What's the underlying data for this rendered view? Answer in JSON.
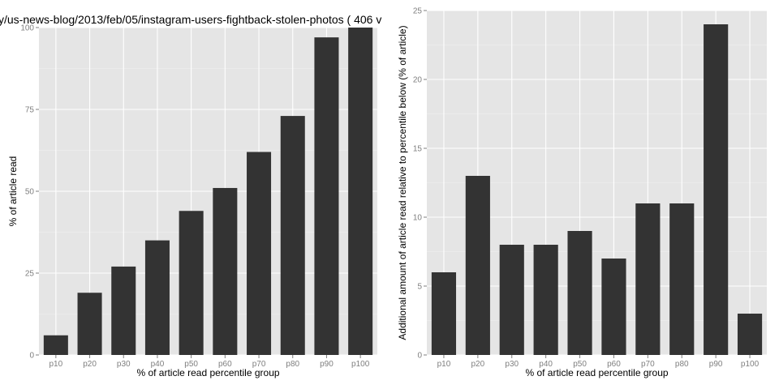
{
  "figure_title": "y/us-news-blog/2013/feb/05/instagram-users-fightback-stolen-photos ( 406 v",
  "chart_data": [
    {
      "type": "bar",
      "categories": [
        "p10",
        "p20",
        "p30",
        "p40",
        "p50",
        "p60",
        "p70",
        "p80",
        "p90",
        "p100"
      ],
      "values": [
        6,
        19,
        27,
        35,
        44,
        51,
        62,
        73,
        97,
        100
      ],
      "xlabel": "% of article read percentile group",
      "ylabel": "% of article read",
      "ylim": [
        0,
        100
      ],
      "yticks": [
        0,
        25,
        50,
        75,
        100
      ],
      "grid": true,
      "bar_color": "#333333",
      "panel_color": "#e5e5e5"
    },
    {
      "type": "bar",
      "categories": [
        "p10",
        "p20",
        "p30",
        "p40",
        "p50",
        "p60",
        "p70",
        "p80",
        "p90",
        "p100"
      ],
      "values": [
        6,
        13,
        8,
        8,
        9,
        7,
        11,
        11,
        24,
        3
      ],
      "xlabel": "% of article read percentile group",
      "ylabel": "Additional amount of article read relative to percentile below (% of article)",
      "ylim": [
        0,
        25
      ],
      "yticks": [
        0,
        5,
        10,
        15,
        20,
        25
      ],
      "grid": true,
      "bar_color": "#333333",
      "panel_color": "#e5e5e5"
    }
  ]
}
